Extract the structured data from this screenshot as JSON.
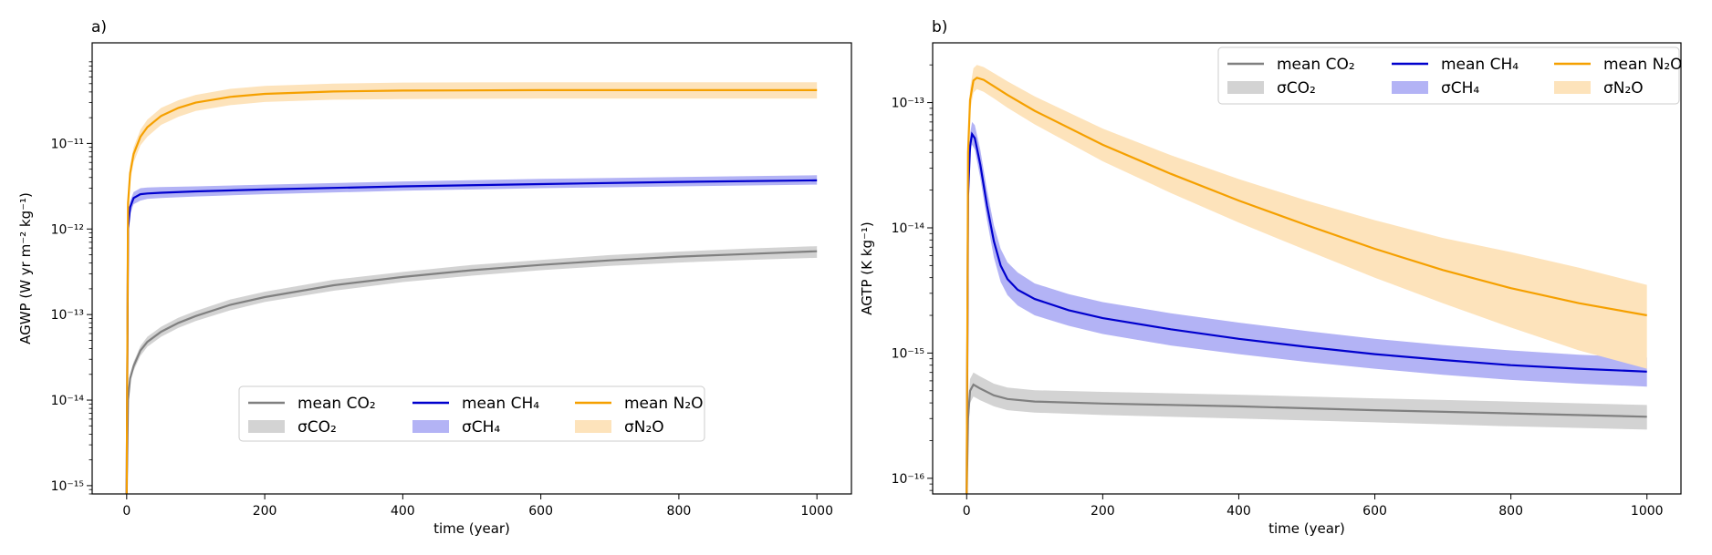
{
  "chart_data": [
    {
      "panel_label": "a)",
      "type": "line",
      "title": "",
      "xlabel": "time (year)",
      "ylabel": "AGWP (W yr m⁻² kg⁻¹)",
      "xlim": [
        -50,
        1050
      ],
      "ylim": [
        8e-16,
        1.5e-10
      ],
      "yscale": "log",
      "grid": false,
      "xticks": [
        0,
        200,
        400,
        600,
        800,
        1000
      ],
      "xtick_labels": [
        "0",
        "200",
        "400",
        "600",
        "800",
        "1000"
      ],
      "yticks": [
        1e-15,
        1e-14,
        1e-13,
        1e-12,
        1e-11
      ],
      "ytick_labels": [
        "10⁻¹⁵",
        "10⁻¹⁴",
        "10⁻¹³",
        "10⁻¹²",
        "10⁻¹¹"
      ],
      "legend_location": "lower center",
      "legend_rows": [
        [
          "mean CO₂",
          "mean CH₄",
          "mean N₂O"
        ],
        [
          "σCO₂",
          "σCH₄",
          "σN₂O"
        ]
      ],
      "series": [
        {
          "name": "mean CO₂",
          "band_name": "σCO₂",
          "color": "#808080",
          "band_color": "#d3d3d3",
          "x": [
            0,
            2,
            5,
            10,
            20,
            30,
            50,
            75,
            100,
            150,
            200,
            300,
            400,
            500,
            600,
            700,
            800,
            900,
            1000
          ],
          "y": [
            8e-16,
            1e-14,
            1.8e-14,
            2.5e-14,
            3.8e-14,
            4.8e-14,
            6.3e-14,
            8e-14,
            9.6e-14,
            1.3e-13,
            1.6e-13,
            2.2e-13,
            2.75e-13,
            3.3e-13,
            3.8e-13,
            4.3e-13,
            4.75e-13,
            5.1e-13,
            5.5e-13
          ],
          "y_low": [
            8e-16,
            9e-15,
            1.6e-14,
            2.2e-14,
            3.3e-14,
            4.2e-14,
            5.5e-14,
            7e-14,
            8.4e-14,
            1.12e-13,
            1.4e-13,
            1.9e-13,
            2.4e-13,
            2.85e-13,
            3.3e-13,
            3.7e-13,
            4.05e-13,
            4.35e-13,
            4.6e-13
          ],
          "y_high": [
            8e-16,
            1.1e-14,
            2e-14,
            2.8e-14,
            4.3e-14,
            5.5e-14,
            7.2e-14,
            9.2e-14,
            1.1e-13,
            1.5e-13,
            1.85e-13,
            2.55e-13,
            3.15e-13,
            3.8e-13,
            4.35e-13,
            4.95e-13,
            5.45e-13,
            5.9e-13,
            6.3e-13
          ]
        },
        {
          "name": "mean CH₄",
          "band_name": "σCH₄",
          "color": "#0000cd",
          "band_color": "#b3b3f5",
          "x": [
            0,
            2,
            5,
            10,
            20,
            30,
            50,
            100,
            200,
            400,
            600,
            800,
            1000
          ],
          "y": [
            8e-16,
            1e-12,
            1.8e-12,
            2.3e-12,
            2.55e-12,
            2.6e-12,
            2.65e-12,
            2.75e-12,
            2.9e-12,
            3.15e-12,
            3.35e-12,
            3.55e-12,
            3.7e-12
          ],
          "y_low": [
            8e-16,
            8.5e-13,
            1.5e-12,
            1.95e-12,
            2.15e-12,
            2.25e-12,
            2.3e-12,
            2.4e-12,
            2.55e-12,
            2.8e-12,
            3e-12,
            3.15e-12,
            3.3e-12
          ],
          "y_high": [
            8e-16,
            1.15e-12,
            2.1e-12,
            2.7e-12,
            3e-12,
            3.05e-12,
            3.1e-12,
            3.15e-12,
            3.3e-12,
            3.6e-12,
            3.85e-12,
            4.05e-12,
            4.25e-12
          ]
        },
        {
          "name": "mean N₂O",
          "band_name": "σN₂O",
          "color": "#f5a000",
          "band_color": "#fde3bb",
          "x": [
            0,
            2,
            5,
            10,
            20,
            30,
            50,
            75,
            100,
            150,
            200,
            300,
            400,
            600,
            800,
            1000
          ],
          "y": [
            8e-16,
            2e-12,
            4.5e-12,
            7.5e-12,
            1.2e-11,
            1.55e-11,
            2.1e-11,
            2.6e-11,
            3e-11,
            3.5e-11,
            3.8e-11,
            4.05e-11,
            4.15e-11,
            4.2e-11,
            4.2e-11,
            4.2e-11
          ],
          "y_low": [
            8e-16,
            1.6e-12,
            3.6e-12,
            6e-12,
            9.5e-12,
            1.2e-11,
            1.65e-11,
            2.05e-11,
            2.4e-11,
            2.8e-11,
            3.05e-11,
            3.25e-11,
            3.3e-11,
            3.35e-11,
            3.35e-11,
            3.35e-11
          ],
          "y_high": [
            8e-16,
            2.4e-12,
            5.5e-12,
            9e-12,
            1.45e-11,
            1.9e-11,
            2.6e-11,
            3.2e-11,
            3.7e-11,
            4.35e-11,
            4.7e-11,
            5e-11,
            5.15e-11,
            5.2e-11,
            5.2e-11,
            5.2e-11
          ]
        }
      ]
    },
    {
      "panel_label": "b)",
      "type": "line",
      "title": "",
      "xlabel": "time (year)",
      "ylabel": "AGTP (K kg⁻¹)",
      "xlim": [
        -50,
        1050
      ],
      "ylim": [
        7.5e-17,
        3e-13
      ],
      "yscale": "log",
      "grid": false,
      "xticks": [
        0,
        200,
        400,
        600,
        800,
        1000
      ],
      "xtick_labels": [
        "0",
        "200",
        "400",
        "600",
        "800",
        "1000"
      ],
      "yticks": [
        1e-16,
        1e-15,
        1e-14,
        1e-13
      ],
      "ytick_labels": [
        "10⁻¹⁶",
        "10⁻¹⁵",
        "10⁻¹⁴",
        "10⁻¹³"
      ],
      "legend_location": "upper right",
      "legend_rows": [
        [
          "mean CO₂",
          "mean CH₄",
          "mean N₂O"
        ],
        [
          "σCO₂",
          "σCH₄",
          "σN₂O"
        ]
      ],
      "series": [
        {
          "name": "mean CO₂",
          "band_name": "σCO₂",
          "color": "#808080",
          "band_color": "#d3d3d3",
          "x": [
            0,
            2,
            5,
            10,
            20,
            40,
            60,
            100,
            200,
            400,
            600,
            800,
            1000
          ],
          "y": [
            7.5e-17,
            3e-16,
            5e-16,
            5.6e-16,
            5.2e-16,
            4.6e-16,
            4.3e-16,
            4.1e-16,
            3.95e-16,
            3.75e-16,
            3.5e-16,
            3.3e-16,
            3.1e-16
          ],
          "y_low": [
            7.5e-17,
            2.4e-16,
            4e-16,
            4.5e-16,
            4.2e-16,
            3.75e-16,
            3.5e-16,
            3.35e-16,
            3.2e-16,
            3e-16,
            2.8e-16,
            2.6e-16,
            2.45e-16
          ],
          "y_high": [
            7.5e-17,
            3.6e-16,
            6.2e-16,
            7e-16,
            6.5e-16,
            5.7e-16,
            5.3e-16,
            5.05e-16,
            4.9e-16,
            4.65e-16,
            4.35e-16,
            4.1e-16,
            3.85e-16
          ]
        },
        {
          "name": "mean CH₄",
          "band_name": "σCH₄",
          "color": "#0000cd",
          "band_color": "#b3b3f5",
          "x": [
            0,
            2,
            5,
            8,
            12,
            20,
            30,
            40,
            50,
            60,
            75,
            100,
            150,
            200,
            300,
            400,
            500,
            600,
            700,
            800,
            900,
            1000
          ],
          "y": [
            7.5e-17,
            1.8e-14,
            4.5e-14,
            5.6e-14,
            5.2e-14,
            3.2e-14,
            1.5e-14,
            7.8e-15,
            5e-15,
            3.9e-15,
            3.2e-15,
            2.7e-15,
            2.2e-15,
            1.9e-15,
            1.55e-15,
            1.3e-15,
            1.12e-15,
            9.8e-16,
            8.8e-16,
            8e-16,
            7.5e-16,
            7.1e-16
          ],
          "y_low": [
            7.5e-17,
            1.5e-14,
            3.8e-14,
            4.6e-14,
            4.2e-14,
            2.5e-14,
            1.15e-14,
            5.8e-15,
            3.7e-15,
            2.9e-15,
            2.4e-15,
            2e-15,
            1.65e-15,
            1.42e-15,
            1.15e-15,
            9.8e-16,
            8.5e-16,
            7.5e-16,
            6.7e-16,
            6.1e-16,
            5.7e-16,
            5.4e-16
          ],
          "y_high": [
            7.5e-17,
            2.2e-14,
            5.6e-14,
            7e-14,
            6.6e-14,
            4.2e-14,
            2e-14,
            1.05e-14,
            6.8e-15,
            5.3e-15,
            4.4e-15,
            3.6e-15,
            2.95e-15,
            2.55e-15,
            2.08e-15,
            1.75e-15,
            1.5e-15,
            1.3e-15,
            1.16e-15,
            1.05e-15,
            9.7e-16,
            9.2e-16
          ]
        },
        {
          "name": "mean N₂O",
          "band_name": "σN₂O",
          "color": "#f5a000",
          "band_color": "#fde3bb",
          "x": [
            0,
            2,
            5,
            10,
            15,
            25,
            40,
            60,
            100,
            200,
            300,
            400,
            500,
            600,
            700,
            800,
            900,
            1000
          ],
          "y": [
            7.5e-17,
            4e-14,
            1.05e-13,
            1.5e-13,
            1.58e-13,
            1.52e-13,
            1.35e-13,
            1.15e-13,
            8.6e-14,
            4.6e-14,
            2.7e-14,
            1.65e-14,
            1.05e-14,
            6.8e-15,
            4.6e-15,
            3.3e-15,
            2.5e-15,
            2e-15
          ],
          "y_low": [
            7.5e-17,
            3.2e-14,
            8.5e-14,
            1.2e-13,
            1.28e-13,
            1.22e-13,
            1.08e-13,
            9.1e-14,
            6.7e-14,
            3.4e-14,
            1.9e-14,
            1.1e-14,
            6.6e-15,
            4e-15,
            2.5e-15,
            1.6e-15,
            1.05e-15,
            7.5e-16
          ],
          "y_high": [
            7.5e-17,
            4.8e-14,
            1.3e-13,
            1.88e-13,
            2e-13,
            1.92e-13,
            1.72e-13,
            1.48e-13,
            1.12e-13,
            6.2e-14,
            3.8e-14,
            2.45e-14,
            1.65e-14,
            1.15e-14,
            8.3e-15,
            6.4e-15,
            4.8e-15,
            3.5e-15
          ]
        }
      ]
    }
  ]
}
